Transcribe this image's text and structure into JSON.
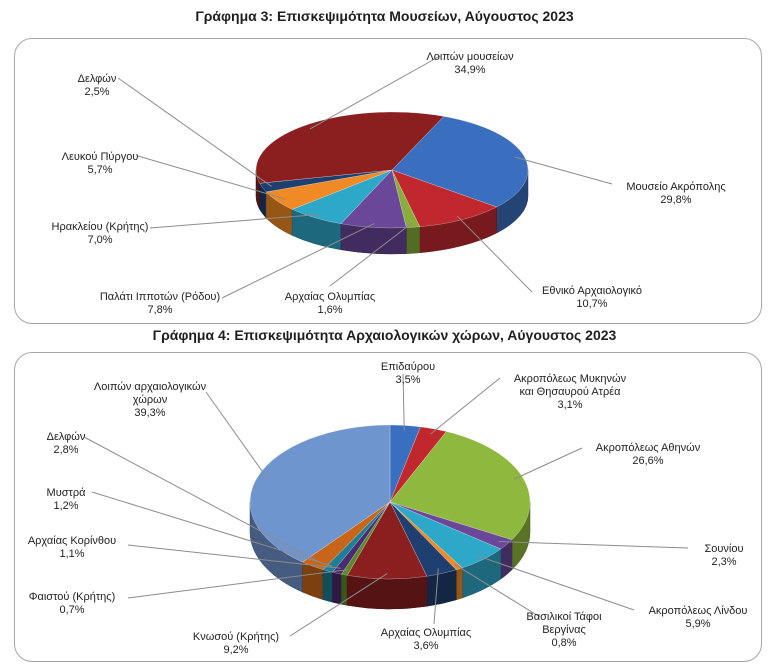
{
  "chart_data": [
    {
      "type": "pie",
      "title": "Γράφημα 3: Επισκεψιμότητα Μουσείων, Αύγουστος 2023",
      "slices": [
        {
          "name": "Μουσείο Ακρόπολης",
          "value_label": "29,8%",
          "value": 29.8,
          "color": "#3a6ebf"
        },
        {
          "name": "Εθνικό Αρχαιολογικό",
          "value_label": "10,7%",
          "value": 10.7,
          "color": "#c0282e"
        },
        {
          "name": "Αρχαίας Ολυμπίας",
          "value_label": "1,6%",
          "value": 1.6,
          "color": "#88ad3a"
        },
        {
          "name": "Παλάτι Ιπποτών (Ρόδου)",
          "value_label": "7,8%",
          "value": 7.8,
          "color": "#6b4799"
        },
        {
          "name": "Ηρακλείου (Κρήτης)",
          "value_label": "7,0%",
          "value": 7.0,
          "color": "#2ea8c8"
        },
        {
          "name": "Λευκού Πύργου",
          "value_label": "5,7%",
          "value": 5.7,
          "color": "#f08a24"
        },
        {
          "name": "Δελφών",
          "value_label": "2,5%",
          "value": 2.5,
          "color": "#1f3f70"
        },
        {
          "name": "Λοιπών μουσείων",
          "value_label": "34,9%",
          "value": 34.9,
          "color": "#8b1f1f"
        }
      ]
    },
    {
      "type": "pie",
      "title": "Γράφημα 4: Επισκεψιμότητα Αρχαιολογικών χώρων, Αύγουστος 2023",
      "slices": [
        {
          "name": "Επιδαύρου",
          "value_label": "3,5%",
          "value": 3.5,
          "color": "#3a6ebf"
        },
        {
          "name": "Ακροπόλεως Μυκηνών και Θησαυρού Ατρέα",
          "value_label": "3,1%",
          "value": 3.1,
          "color": "#c0282e"
        },
        {
          "name": "Ακροπόλεως Αθηνών",
          "value_label": "26,6%",
          "value": 26.6,
          "color": "#8fb83e"
        },
        {
          "name": "Σουνίου",
          "value_label": "2,3%",
          "value": 2.3,
          "color": "#6b4799"
        },
        {
          "name": "Ακροπόλεως Λίνδου",
          "value_label": "5,9%",
          "value": 5.9,
          "color": "#2ea8c8"
        },
        {
          "name": "Βασιλικοί Τάφοι Βεργίνας",
          "value_label": "0,8%",
          "value": 0.8,
          "color": "#f08a24"
        },
        {
          "name": "Αρχαίας Ολυμπίας",
          "value_label": "3,6%",
          "value": 3.6,
          "color": "#1f3f70"
        },
        {
          "name": "Κνωσού (Κρήτης)",
          "value_label": "9,2%",
          "value": 9.2,
          "color": "#8b1f1f"
        },
        {
          "name": "Φαιστού (Κρήτης)",
          "value_label": "0,7%",
          "value": 0.7,
          "color": "#5b8a2a"
        },
        {
          "name": "Αρχαίας Κορίνθου",
          "value_label": "1,1%",
          "value": 1.1,
          "color": "#4a2a70"
        },
        {
          "name": "Μυστρά",
          "value_label": "1,2%",
          "value": 1.2,
          "color": "#1d7f96"
        },
        {
          "name": "Δελφών",
          "value_label": "2,8%",
          "value": 2.8,
          "color": "#c7651a"
        },
        {
          "name": "Λοιπών αρχαιολογικών χώρων",
          "value_label": "39,3%",
          "value": 39.3,
          "color": "#6f95cf"
        }
      ]
    }
  ]
}
